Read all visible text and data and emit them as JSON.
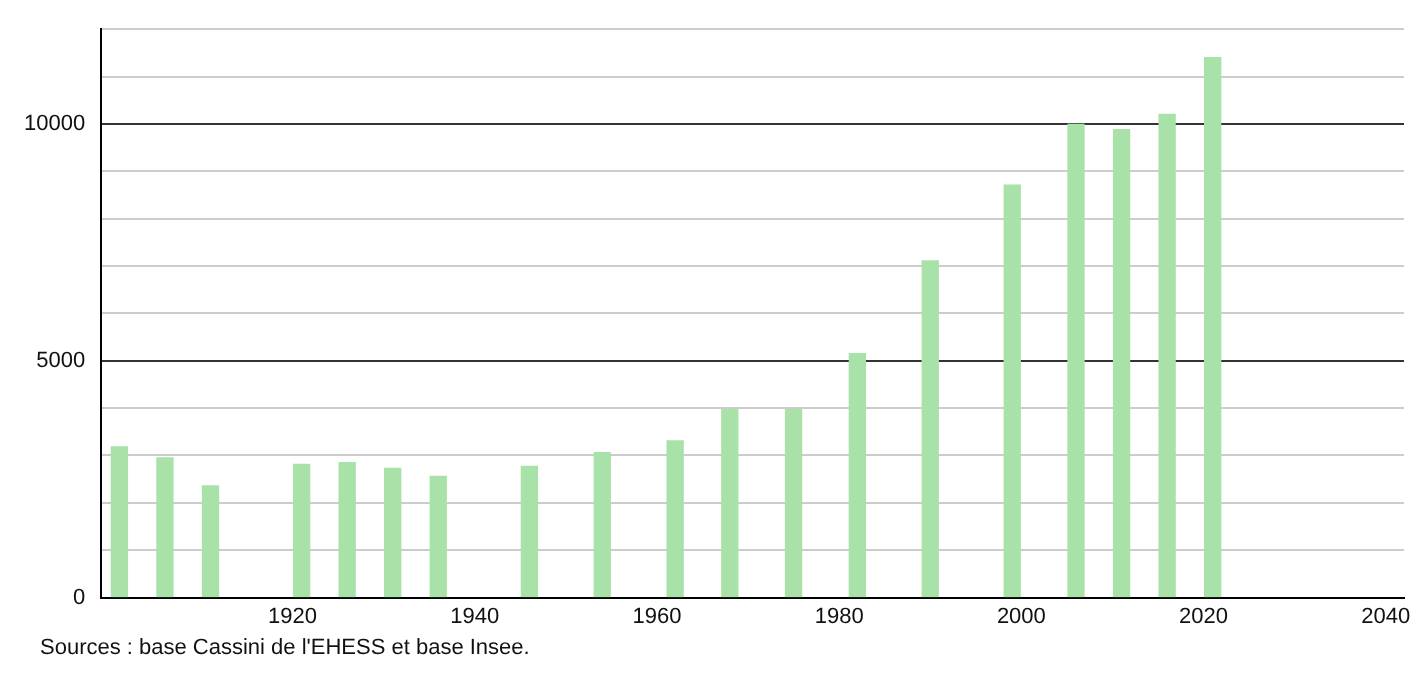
{
  "chart_data": {
    "type": "bar",
    "x": [
      1901,
      1906,
      1911,
      1921,
      1926,
      1931,
      1936,
      1946,
      1954,
      1962,
      1968,
      1975,
      1982,
      1990,
      1999,
      2006,
      2011,
      2016,
      2021
    ],
    "values": [
      3180,
      2950,
      2360,
      2810,
      2850,
      2730,
      2560,
      2770,
      3060,
      3310,
      3970,
      3970,
      5150,
      7110,
      8710,
      9990,
      9880,
      10200,
      11400
    ],
    "color": "#a8e2a8",
    "xlim": [
      1899,
      2042
    ],
    "xticks": [
      1920,
      1940,
      1960,
      1980,
      2000,
      2020,
      2040
    ],
    "ylim": [
      0,
      12000
    ],
    "yticks": [
      0,
      {
        "value": 1000,
        "label": null
      },
      {
        "value": 2000,
        "label": null
      },
      {
        "value": 3000,
        "label": null
      },
      {
        "value": 4000,
        "label": null
      },
      5000,
      {
        "value": 6000,
        "label": null
      },
      {
        "value": 7000,
        "label": null
      },
      {
        "value": 8000,
        "label": null
      },
      {
        "value": 9000,
        "label": null
      },
      10000,
      {
        "value": 11000,
        "label": null
      },
      {
        "value": 12000,
        "label": null
      }
    ],
    "grid": "y",
    "annotations": [
      "Sources : base Cassini de l'EHESS et base Insee."
    ]
  }
}
